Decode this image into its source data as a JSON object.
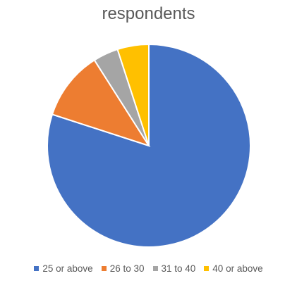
{
  "chart_data": {
    "type": "pie",
    "title": "respondents",
    "categories": [
      "25 or above",
      "26 to 30",
      "31 to 40",
      "40 or above"
    ],
    "values": [
      80,
      11,
      4,
      5
    ],
    "colors": [
      "#4472C4",
      "#ED7D31",
      "#A5A5A5",
      "#FFC000"
    ],
    "start_angle_deg": 0,
    "direction": "clockwise",
    "legend": "bottom"
  }
}
